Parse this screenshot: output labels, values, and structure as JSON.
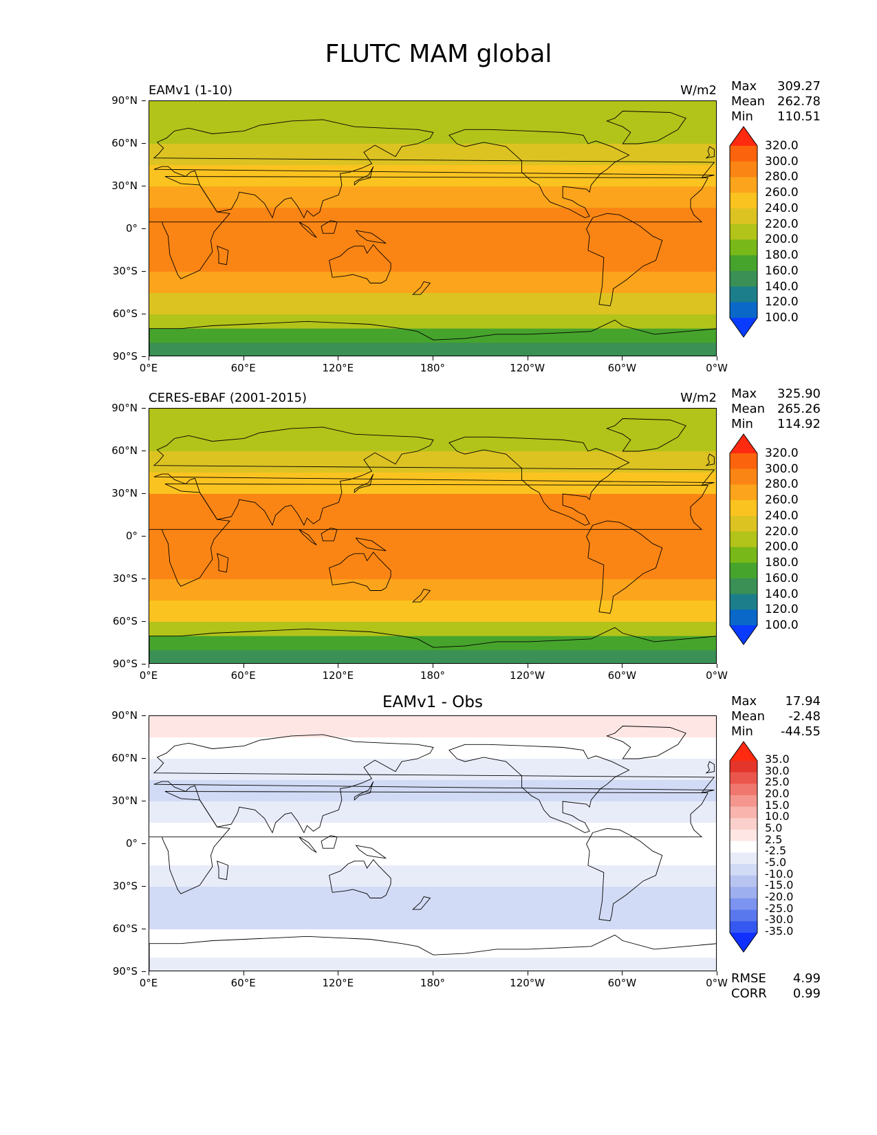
{
  "figure": {
    "title": "FLUTC MAM global"
  },
  "axes": {
    "lat_labels": [
      "90°N",
      "60°N",
      "30°N",
      "0°",
      "30°S",
      "60°S",
      "90°S"
    ],
    "lon_labels": [
      "0°E",
      "60°E",
      "120°E",
      "180°",
      "120°W",
      "60°W",
      "0°W"
    ]
  },
  "panels": [
    {
      "id": "test",
      "title": "EAMv1 (1-10)",
      "units": "W/m2",
      "stats": {
        "max_label": "Max",
        "max": "309.27",
        "mean_label": "Mean",
        "mean": "262.78",
        "min_label": "Min",
        "min": "110.51"
      },
      "colorbar_labels": [
        "320.0",
        "300.0",
        "280.0",
        "260.0",
        "240.0",
        "220.0",
        "200.0",
        "180.0",
        "160.0",
        "140.0",
        "120.0",
        "100.0"
      ]
    },
    {
      "id": "ref",
      "title": "CERES-EBAF (2001-2015)",
      "units": "W/m2",
      "stats": {
        "max_label": "Max",
        "max": "325.90",
        "mean_label": "Mean",
        "mean": "265.26",
        "min_label": "Min",
        "min": "114.92"
      },
      "colorbar_labels": [
        "320.0",
        "300.0",
        "280.0",
        "260.0",
        "240.0",
        "220.0",
        "200.0",
        "180.0",
        "160.0",
        "140.0",
        "120.0",
        "100.0"
      ]
    },
    {
      "id": "diff",
      "title": "EAMv1 - Obs",
      "units": "",
      "stats": {
        "max_label": "Max",
        "max": "17.94",
        "mean_label": "Mean",
        "mean": "-2.48",
        "min_label": "Min",
        "min": "-44.55"
      },
      "colorbar_labels": [
        "35.0",
        "30.0",
        "25.0",
        "20.0",
        "15.0",
        "10.0",
        "5.0",
        "2.5",
        "-2.5",
        "-5.0",
        "-10.0",
        "-15.0",
        "-20.0",
        "-25.0",
        "-30.0",
        "-35.0"
      ],
      "metrics": {
        "rmse_label": "RMSE",
        "rmse": "4.99",
        "corr_label": "CORR",
        "corr": "0.99"
      }
    }
  ],
  "chart_data": [
    {
      "type": "heatmap",
      "title": "EAMv1 (1-10)",
      "units": "W/m2",
      "x_range": [
        0,
        360
      ],
      "y_range": [
        -90,
        90
      ],
      "color_levels": [
        100,
        120,
        140,
        160,
        180,
        200,
        220,
        240,
        260,
        280,
        300,
        320
      ],
      "zonal_profile": [
        {
          "lat": 90,
          "value": 205
        },
        {
          "lat": 75,
          "value": 205
        },
        {
          "lat": 60,
          "value": 225
        },
        {
          "lat": 45,
          "value": 240
        },
        {
          "lat": 30,
          "value": 265
        },
        {
          "lat": 15,
          "value": 285
        },
        {
          "lat": 0,
          "value": 282
        },
        {
          "lat": -15,
          "value": 287
        },
        {
          "lat": -30,
          "value": 280
        },
        {
          "lat": -45,
          "value": 250
        },
        {
          "lat": -60,
          "value": 225
        },
        {
          "lat": -70,
          "value": 195
        },
        {
          "lat": -80,
          "value": 145
        },
        {
          "lat": -90,
          "value": 140
        }
      ],
      "stats": {
        "max": 309.27,
        "mean": 262.78,
        "min": 110.51
      }
    },
    {
      "type": "heatmap",
      "title": "CERES-EBAF (2001-2015)",
      "units": "W/m2",
      "x_range": [
        0,
        360
      ],
      "y_range": [
        -90,
        90
      ],
      "color_levels": [
        100,
        120,
        140,
        160,
        180,
        200,
        220,
        240,
        260,
        280,
        300,
        320
      ],
      "zonal_profile": [
        {
          "lat": 90,
          "value": 195
        },
        {
          "lat": 75,
          "value": 210
        },
        {
          "lat": 60,
          "value": 225
        },
        {
          "lat": 45,
          "value": 245
        },
        {
          "lat": 30,
          "value": 270
        },
        {
          "lat": 15,
          "value": 290
        },
        {
          "lat": 0,
          "value": 285
        },
        {
          "lat": -15,
          "value": 290
        },
        {
          "lat": -30,
          "value": 285
        },
        {
          "lat": -45,
          "value": 255
        },
        {
          "lat": -60,
          "value": 230
        },
        {
          "lat": -70,
          "value": 200
        },
        {
          "lat": -80,
          "value": 150
        },
        {
          "lat": -90,
          "value": 140
        }
      ],
      "stats": {
        "max": 325.9,
        "mean": 265.26,
        "min": 114.92
      }
    },
    {
      "type": "heatmap",
      "title": "EAMv1 - Obs",
      "units": "W/m2",
      "x_range": [
        0,
        360
      ],
      "y_range": [
        -90,
        90
      ],
      "color_levels": [
        -35,
        -30,
        -25,
        -20,
        -15,
        -10,
        -5,
        -2.5,
        2.5,
        5,
        10,
        15,
        20,
        25,
        30,
        35
      ],
      "zonal_profile": [
        {
          "lat": 90,
          "value": 5
        },
        {
          "lat": 75,
          "value": 0
        },
        {
          "lat": 60,
          "value": -3
        },
        {
          "lat": 45,
          "value": -6
        },
        {
          "lat": 30,
          "value": -6
        },
        {
          "lat": 15,
          "value": -3
        },
        {
          "lat": 0,
          "value": 0
        },
        {
          "lat": -15,
          "value": -4
        },
        {
          "lat": -30,
          "value": -6
        },
        {
          "lat": -45,
          "value": -9
        },
        {
          "lat": -60,
          "value": -5
        },
        {
          "lat": -68,
          "value": 5
        },
        {
          "lat": -80,
          "value": -4
        },
        {
          "lat": -90,
          "value": -6
        }
      ],
      "stats": {
        "max": 17.94,
        "mean": -2.48,
        "min": -44.55,
        "rmse": 4.99,
        "corr": 0.99
      }
    }
  ]
}
